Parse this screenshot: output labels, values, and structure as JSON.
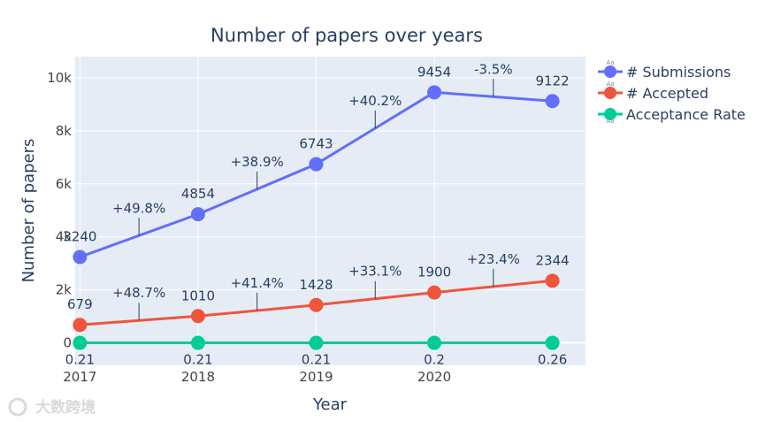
{
  "watermark": "大数跨境",
  "chart_data": {
    "type": "line",
    "title": "Number of papers over years",
    "xlabel": "Year",
    "ylabel": "Number of papers",
    "x": [
      2017,
      2018,
      2019,
      2020,
      2021
    ],
    "x_tick_labels": [
      "2017",
      "2018",
      "2019",
      "2020"
    ],
    "ylim": [
      -850,
      10800
    ],
    "y_ticks": [
      0,
      2000,
      4000,
      6000,
      8000,
      10000
    ],
    "y_tick_labels": [
      "0",
      "2k",
      "4k",
      "6k",
      "8k",
      "10k"
    ],
    "grid": true,
    "legend_position": "right",
    "series": [
      {
        "name": "# Submissions",
        "color": "#636efa",
        "values": [
          3240,
          4854,
          6743,
          9454,
          9122
        ],
        "point_labels": [
          "3240",
          "4854",
          "6743",
          "9454",
          "9122"
        ],
        "change_labels": [
          "+49.8%",
          "+38.9%",
          "+40.2%",
          "-3.5%"
        ]
      },
      {
        "name": "# Accepted",
        "color": "#ef553b",
        "values": [
          679,
          1010,
          1428,
          1900,
          2344
        ],
        "point_labels": [
          "679",
          "1010",
          "1428",
          "1900",
          "2344"
        ],
        "change_labels": [
          "+48.7%",
          "+41.4%",
          "+33.1%",
          "+23.4%"
        ]
      },
      {
        "name": "Acceptance Rate",
        "color": "#00cc96",
        "values": [
          0.21,
          0.21,
          0.21,
          0.2,
          0.26
        ],
        "point_labels": [
          "0.21",
          "0.21",
          "0.21",
          "0.2",
          "0.26"
        ]
      }
    ],
    "legend_marker_text": "Aa"
  }
}
